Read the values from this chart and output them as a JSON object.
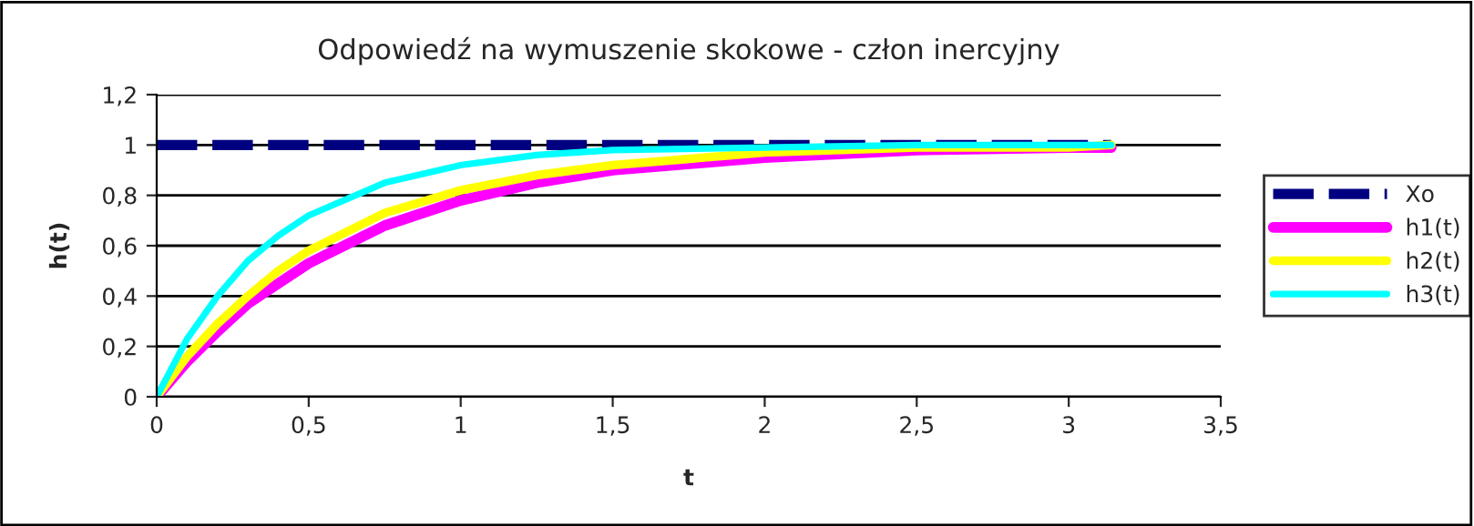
{
  "chart_data": {
    "type": "line",
    "title": "Odpowiedź na wymuszenie skokowe - człon inercyjny",
    "xlabel": "t",
    "ylabel": "h(t)",
    "x": [
      0,
      0.1,
      0.2,
      0.3,
      0.4,
      0.5,
      0.75,
      1,
      1.25,
      1.5,
      2,
      2.5,
      3,
      3.14
    ],
    "series": [
      {
        "name": "Xo",
        "color": "#000080",
        "line_style": "dashed",
        "values": [
          1,
          1,
          1,
          1,
          1,
          1,
          1,
          1,
          1,
          1,
          1,
          1,
          1,
          1
        ]
      },
      {
        "name": "h1(t)",
        "color": "#ff00ff",
        "values": [
          0,
          0.14,
          0.26,
          0.37,
          0.45,
          0.53,
          0.68,
          0.78,
          0.85,
          0.9,
          0.95,
          0.98,
          0.99,
          0.99
        ]
      },
      {
        "name": "h2(t)",
        "color": "#ffff00",
        "values": [
          0,
          0.16,
          0.29,
          0.4,
          0.5,
          0.58,
          0.73,
          0.82,
          0.88,
          0.92,
          0.97,
          0.99,
          0.99,
          1.0
        ]
      },
      {
        "name": "h3(t)",
        "color": "#00ffff",
        "values": [
          0,
          0.23,
          0.4,
          0.54,
          0.64,
          0.72,
          0.85,
          0.92,
          0.96,
          0.98,
          0.99,
          1.0,
          1.0,
          1.0
        ]
      }
    ],
    "xlim": [
      0,
      3.5
    ],
    "xticks": [
      0,
      {
        "value": 0.5,
        "label": "0,5"
      },
      1,
      {
        "value": 1.5,
        "label": "1,5"
      },
      2,
      {
        "value": 2.5,
        "label": "2,5"
      },
      3,
      {
        "value": 3.5,
        "label": "3,5"
      }
    ],
    "ylim": [
      0,
      1.2
    ],
    "yticks": [
      0,
      {
        "value": 0.2,
        "label": "0,2"
      },
      {
        "value": 0.4,
        "label": "0,4"
      },
      {
        "value": 0.6,
        "label": "0,6"
      },
      {
        "value": 0.8,
        "label": "0,8"
      },
      1,
      {
        "value": 1.2,
        "label": "1,2"
      }
    ],
    "grid": "y",
    "legend": "right",
    "line_style": "solid",
    "marker": "none"
  }
}
